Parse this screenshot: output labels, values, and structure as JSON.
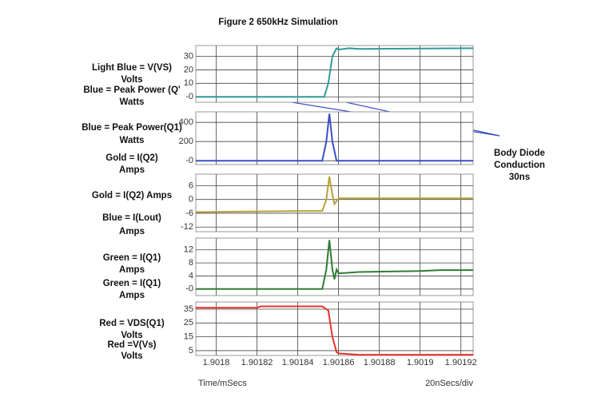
{
  "title": "Figure 2 650kHz Simulation",
  "x_axis_label": "Time/mSecs",
  "x_scale_label": "20nSecs/div",
  "annotation": [
    "Body Diode",
    "Conduction",
    "30ns"
  ],
  "chart_data": [
    {
      "type": "line",
      "labels": [
        "Light Blue = V(VS)",
        "Volts",
        "Blue = Peak Power (Q'",
        "Watts"
      ],
      "ylim": [
        -4,
        38
      ],
      "yticks": [
        {
          "value": 0,
          "label": "-0"
        },
        10,
        20,
        30
      ],
      "grid": true,
      "xlim": [
        1.90179,
        1.901926
      ],
      "xticks": [
        1.9018,
        1.90182,
        1.90184,
        1.90186,
        1.90188,
        1.9019,
        1.90192
      ],
      "series": [
        {
          "color": "#2e9c96",
          "x": [
            1.90179,
            1.90182,
            1.901853,
            1.901855,
            1.901857,
            1.901859,
            1.90186,
            1.901865,
            1.90187,
            1.901926
          ],
          "values": [
            0,
            0,
            0,
            10,
            30,
            36,
            35,
            36,
            35.5,
            36
          ]
        }
      ]
    },
    {
      "type": "line",
      "labels": [
        "Blue = Peak Power(Q1)",
        "Watts"
      ],
      "ylim": [
        -40,
        510
      ],
      "yticks": [
        {
          "value": 0,
          "label": "-0"
        },
        200,
        400
      ],
      "grid": true,
      "xlim": [
        1.90179,
        1.901926
      ],
      "xticks": [
        1.9018,
        1.90182,
        1.90184,
        1.90186,
        1.90188,
        1.9019,
        1.90192
      ],
      "series": [
        {
          "color": "#3a4fc4",
          "x": [
            1.90179,
            1.901852,
            1.901854,
            1.9018555,
            1.901857,
            1.901859,
            1.901862,
            1.901926
          ],
          "values": [
            0,
            0,
            200,
            490,
            200,
            0,
            0,
            0
          ]
        }
      ]
    },
    {
      "type": "line",
      "labels": [
        "Gold = I(Q2)",
        "Amps",
        "Gold = I(Q2) Amps",
        "Blue = I(Lout)",
        "Amps"
      ],
      "ylim": [
        -14,
        11
      ],
      "yticks": [
        -12,
        -6,
        0,
        6
      ],
      "grid": true,
      "xlim": [
        1.90179,
        1.901926
      ],
      "xticks": [
        1.9018,
        1.90182,
        1.90184,
        1.90186,
        1.90188,
        1.9019,
        1.90192
      ],
      "series": [
        {
          "color": "#b8a23a",
          "x": [
            1.90179,
            1.90184,
            1.901852,
            1.901854,
            1.9018555,
            1.901857,
            1.901858,
            1.90186,
            1.901926
          ],
          "values": [
            -5.5,
            -5,
            -5,
            0,
            10,
            2,
            -2,
            0.5,
            0.5
          ]
        }
      ]
    },
    {
      "type": "line",
      "labels": [
        "Green = I(Q1)",
        "Amps",
        "Green = I(Q1)",
        "Amps"
      ],
      "ylim": [
        -2,
        15.6
      ],
      "yticks": [
        {
          "value": 0,
          "label": "-0"
        },
        4,
        8,
        12
      ],
      "grid": true,
      "xlim": [
        1.90179,
        1.901926
      ],
      "xticks": [
        1.9018,
        1.90182,
        1.90184,
        1.90186,
        1.90188,
        1.9019,
        1.90192
      ],
      "series": [
        {
          "color": "#2e7d32",
          "x": [
            1.90179,
            1.901852,
            1.901854,
            1.9018555,
            1.901857,
            1.901858,
            1.901859,
            1.90186,
            1.90187,
            1.9019,
            1.90191,
            1.901926
          ],
          "values": [
            0,
            0,
            6,
            15,
            6,
            3,
            6,
            4.8,
            5.2,
            5.5,
            5.8,
            5.8
          ]
        }
      ]
    },
    {
      "type": "line",
      "labels": [
        "Red = VDS(Q1)",
        "Volts",
        "Red =V(Vs)",
        "Volts"
      ],
      "ylim": [
        1.5,
        40.2
      ],
      "yticks": [
        5,
        15,
        25,
        35
      ],
      "grid": true,
      "show_x_labels": true,
      "xlim": [
        1.90179,
        1.901926
      ],
      "xticks": [
        1.9018,
        1.90182,
        1.90184,
        1.90186,
        1.90188,
        1.9019,
        1.90192
      ],
      "series": [
        {
          "color": "#e8322b",
          "x": [
            1.90179,
            1.90182,
            1.901822,
            1.901852,
            1.901855,
            1.901857,
            1.901859,
            1.90186,
            1.90187,
            1.901926
          ],
          "values": [
            36,
            36,
            37,
            37,
            34,
            15,
            4,
            3,
            2,
            2
          ]
        }
      ]
    }
  ]
}
